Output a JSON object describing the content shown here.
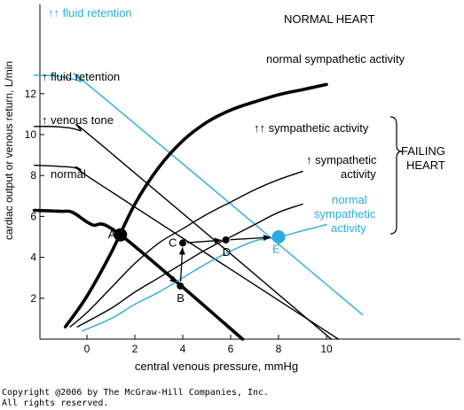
{
  "chart_data": {
    "type": "line",
    "title": "",
    "xlabel": "central venous pressure, mmHg",
    "ylabel": "cardiac output or venous return, L/min",
    "xlim": [
      -2,
      10.5
    ],
    "ylim": [
      0,
      13.5
    ],
    "x_ticks": [
      0,
      2,
      4,
      6,
      8,
      10
    ],
    "y_ticks": [
      2,
      4,
      6,
      8,
      10,
      12
    ],
    "colors": {
      "black": "#000000",
      "blue": "#29abe2"
    },
    "venous_return_curves": [
      {
        "label": "normal",
        "color": "black",
        "thick": true,
        "points": [
          [
            -2.2,
            6.3
          ],
          [
            -1.1,
            6.25
          ],
          [
            -0.6,
            6.2
          ],
          [
            0.2,
            5.6
          ],
          [
            1.4,
            5.1
          ],
          [
            6.5,
            0
          ]
        ]
      },
      {
        "label": "↑ venous tone",
        "color": "black",
        "thick": false,
        "points": [
          [
            -2.2,
            8.5
          ],
          [
            -1.2,
            8.45
          ],
          [
            -0.3,
            8.3
          ],
          [
            0.5,
            7.6
          ],
          [
            10.5,
            0
          ]
        ]
      },
      {
        "label": "↑ fluid retention",
        "color": "black",
        "thick": false,
        "points": [
          [
            -2.2,
            10.4
          ],
          [
            -1.2,
            10.38
          ],
          [
            -0.3,
            10.2
          ],
          [
            0.5,
            9.6
          ],
          [
            10.2,
            0
          ]
        ]
      },
      {
        "label": "↑↑ fluid retention",
        "color": "blue",
        "thick": false,
        "points": [
          [
            -2.2,
            12.9
          ],
          [
            -1.2,
            12.85
          ],
          [
            -0.3,
            12.6
          ],
          [
            0.5,
            12.0
          ],
          [
            11.5,
            1.2
          ]
        ]
      }
    ],
    "cardiac_function_curves": [
      {
        "label": "normal sympathetic activity",
        "color": "black",
        "thick": true,
        "points": [
          [
            -0.9,
            0.6
          ],
          [
            0.0,
            2.1
          ],
          [
            1.0,
            4.2
          ],
          [
            2.0,
            6.6
          ],
          [
            3.0,
            8.4
          ],
          [
            4.0,
            9.7
          ],
          [
            5.0,
            10.6
          ],
          [
            6.0,
            11.2
          ],
          [
            7.0,
            11.6
          ],
          [
            8.0,
            11.95
          ],
          [
            9.0,
            12.2
          ],
          [
            10.0,
            12.45
          ]
        ]
      },
      {
        "label": "↑↑ sympathetic activity",
        "color": "black",
        "thick": false,
        "points": [
          [
            -0.7,
            0.6
          ],
          [
            0.0,
            1.3
          ],
          [
            1.0,
            2.5
          ],
          [
            2.0,
            3.7
          ],
          [
            3.0,
            4.7
          ],
          [
            4.0,
            5.4
          ],
          [
            5.0,
            6.1
          ],
          [
            6.0,
            6.7
          ],
          [
            7.0,
            7.3
          ],
          [
            8.0,
            7.8
          ],
          [
            9.0,
            8.2
          ]
        ]
      },
      {
        "label": "↑ sympathetic activity",
        "color": "black",
        "thick": false,
        "points": [
          [
            -0.4,
            0.6
          ],
          [
            1.0,
            1.5
          ],
          [
            2.0,
            2.3
          ],
          [
            3.0,
            3.0
          ],
          [
            4.0,
            3.7
          ],
          [
            5.0,
            4.4
          ],
          [
            6.0,
            5.0
          ],
          [
            7.0,
            5.6
          ],
          [
            8.0,
            6.2
          ],
          [
            9.0,
            6.6
          ]
        ]
      },
      {
        "label": "normal sympathetic activity",
        "color": "blue",
        "thick": false,
        "points": [
          [
            -0.2,
            0.4
          ],
          [
            1.0,
            1.0
          ],
          [
            2.0,
            1.7
          ],
          [
            3.0,
            2.3
          ],
          [
            4.0,
            3.0
          ],
          [
            5.0,
            3.7
          ],
          [
            6.0,
            4.3
          ],
          [
            7.0,
            4.8
          ],
          [
            8.0,
            5.0
          ],
          [
            9.0,
            5.3
          ],
          [
            10.0,
            5.6
          ]
        ]
      }
    ],
    "points": [
      {
        "label": "A",
        "x": 1.4,
        "y": 5.1,
        "color": "black",
        "large": true
      },
      {
        "label": "B",
        "x": 3.9,
        "y": 2.6,
        "color": "black",
        "large": false
      },
      {
        "label": "C",
        "x": 4.0,
        "y": 4.7,
        "color": "black",
        "large": false
      },
      {
        "label": "D",
        "x": 5.8,
        "y": 4.85,
        "color": "black",
        "large": false
      },
      {
        "label": "E",
        "x": 8.0,
        "y": 5.0,
        "color": "blue",
        "large": true
      }
    ],
    "arrows": [
      {
        "from": "A",
        "to": "B"
      },
      {
        "from": "B",
        "to": "C"
      },
      {
        "from": "C",
        "to": "D"
      },
      {
        "from": "D",
        "to": "E"
      }
    ],
    "annotations": {
      "normal_heart": "NORMAL HEART",
      "failing_heart_line1": "FAILING",
      "failing_heart_line2": "HEART",
      "normal_symp_top": "normal sympathetic activity",
      "symp_2up": "↑↑ sympathetic activity",
      "symp_1up_line1": "↑ sympathetic",
      "symp_1up_line2": "activity",
      "blue_normal_line1": "normal",
      "blue_normal_line2": "sympathetic",
      "blue_normal_line3": "activity",
      "fluid_2up": "↑↑ fluid retention",
      "fluid_1up": "↑ fluid retention",
      "venous_tone": "↑ venous tone",
      "normal_vr": "normal"
    }
  },
  "copyright": {
    "line1": "Copyright @2006 by The McGraw-Hill Companies, Inc.",
    "line2": "All rights reserved."
  }
}
